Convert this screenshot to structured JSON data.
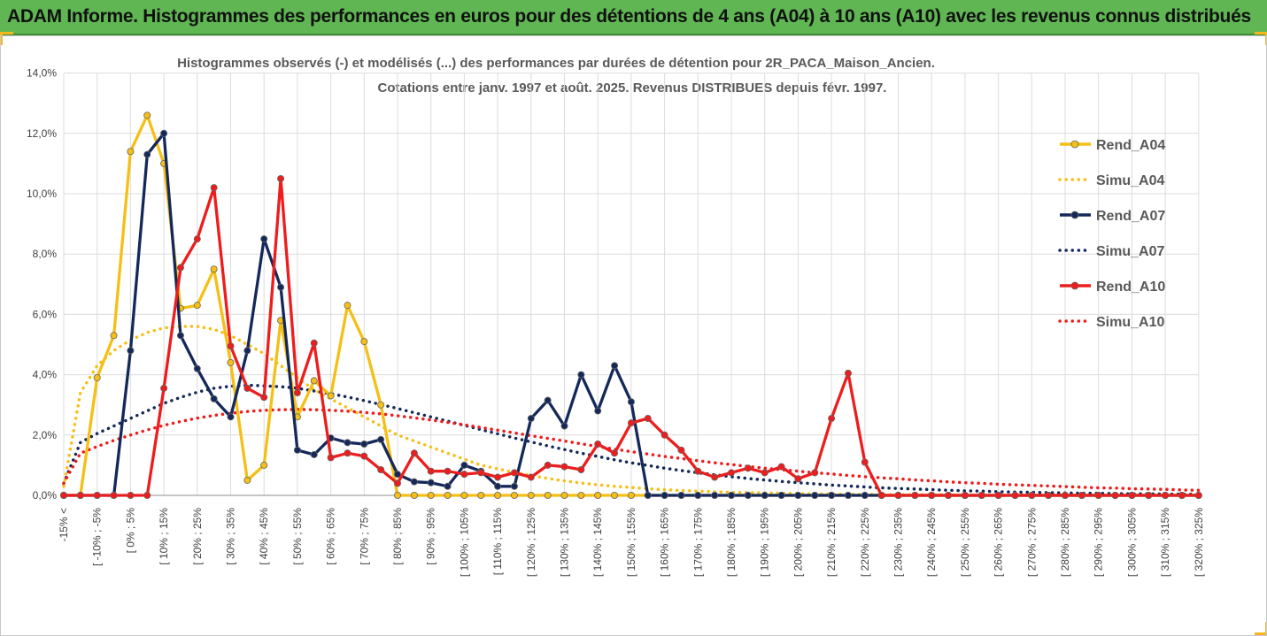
{
  "header": {
    "title": "ADAM Informe. Histogrammes des performances en euros pour des détentions de 4 ans (A04) à 10 ans (A10) avec les revenus connus distribués"
  },
  "chart_data": {
    "type": "line",
    "title": "Histogrammes observés (-) et modélisés (...) des performances par durées de détention pour 2R_PACA_Maison_Ancien.",
    "subtitle": "Cotations entre janv. 1997 et août. 2025. Revenus DISTRIBUES depuis févr. 1997.",
    "xlabel": "",
    "ylabel": "",
    "ylim": [
      0,
      14
    ],
    "yticks": [
      "0,0%",
      "2,0%",
      "4,0%",
      "6,0%",
      "8,0%",
      "10,0%",
      "12,0%",
      "14,0%"
    ],
    "grid": true,
    "legend_position": "right",
    "x_labels": [
      "-15% <",
      "[ -10% ; -5%",
      "[ 0% ; 5%",
      "[ 10% ; 15%",
      "[ 20% ; 25%",
      "[ 30% ; 35%",
      "[ 40% ; 45%",
      "[ 50% ; 55%",
      "[ 60% ; 65%",
      "[ 70% ; 75%",
      "[ 80% ; 85%",
      "[ 90% ; 95%",
      "[ 100% ; 105%",
      "[ 110% ; 115%",
      "[ 120% ; 125%",
      "[ 130% ; 135%",
      "[ 140% ; 145%",
      "[ 150% ; 155%",
      "[ 160% ; 165%",
      "[ 170% ; 175%",
      "[ 180% ; 185%",
      "[ 190% ; 195%",
      "[ 200% ; 205%",
      "[ 210% ; 215%",
      "[ 220% ; 225%",
      "[ 230% ; 235%",
      "[ 240% ; 245%",
      "[ 250% ; 255%",
      "[ 260% ; 265%",
      "[ 270% ; 275%",
      "[ 280% ; 285%",
      "[ 290% ; 295%",
      "[ 300% ; 305%",
      "[ 310% ; 315%",
      "[ 320% ; 325%"
    ],
    "series": [
      {
        "name": "Rend_A04",
        "color": "#f5bf16",
        "style": "solid",
        "values": [
          0,
          0,
          3.9,
          5.3,
          11.4,
          12.6,
          11.0,
          6.2,
          6.3,
          7.5,
          4.4,
          0.5,
          1.0,
          5.8,
          2.6,
          3.8,
          3.3,
          6.3,
          5.1,
          3.0,
          0,
          0,
          0,
          0,
          0,
          0,
          0,
          0,
          0,
          0,
          0,
          0,
          0,
          0,
          0,
          0,
          0,
          0,
          0,
          0,
          0,
          0,
          0,
          0,
          0,
          0,
          0,
          0,
          0,
          0,
          0,
          0,
          0,
          0,
          0,
          0,
          0,
          0,
          0,
          0,
          0,
          0,
          0,
          0,
          0,
          0,
          0,
          0,
          0
        ]
      },
      {
        "name": "Simu_A04",
        "color": "#f5bf16",
        "style": "dotted",
        "values": [
          0.3,
          3.4,
          4.3,
          4.8,
          5.15,
          5.4,
          5.55,
          5.6,
          5.6,
          5.5,
          5.3,
          5.0,
          4.7,
          4.3,
          3.9,
          3.5,
          3.2,
          2.9,
          2.6,
          2.3,
          2.0,
          1.8,
          1.6,
          1.4,
          1.2,
          1.0,
          0.88,
          0.76,
          0.66,
          0.56,
          0.48,
          0.41,
          0.35,
          0.3,
          0.26,
          0.22,
          0.19,
          0.16,
          0.14,
          0.12,
          0.1,
          0.09,
          0.08,
          0.07,
          0.06,
          0.05,
          0.04,
          0.04,
          0.03,
          0.03,
          0.02,
          0.02,
          0.02,
          0.02,
          0.01,
          0.01,
          0.01,
          0.01,
          0.01,
          0.01,
          0.01,
          0.01,
          0.01,
          0.01,
          0.01,
          0.01,
          0.01,
          0.01,
          0.01
        ]
      },
      {
        "name": "Rend_A07",
        "color": "#14285a",
        "style": "solid",
        "values": [
          0,
          0,
          0,
          0,
          4.8,
          11.3,
          12.0,
          5.3,
          4.2,
          3.2,
          2.6,
          4.8,
          8.5,
          6.9,
          1.5,
          1.35,
          1.9,
          1.75,
          1.7,
          1.85,
          0.7,
          0.45,
          0.42,
          0.3,
          1.0,
          0.8,
          0.3,
          0.3,
          2.55,
          3.15,
          2.3,
          4.0,
          2.8,
          4.3,
          3.1,
          0,
          0,
          0,
          0,
          0,
          0,
          0,
          0,
          0,
          0,
          0,
          0,
          0,
          0,
          0,
          0,
          0,
          0,
          0,
          0,
          0,
          0,
          0,
          0,
          0,
          0,
          0,
          0,
          0,
          0,
          0,
          0,
          0,
          0
        ]
      },
      {
        "name": "Simu_A07",
        "color": "#14285a",
        "style": "dotted",
        "values": [
          0.4,
          1.75,
          2.05,
          2.3,
          2.55,
          2.8,
          3.05,
          3.25,
          3.42,
          3.55,
          3.62,
          3.65,
          3.63,
          3.6,
          3.55,
          3.46,
          3.37,
          3.26,
          3.14,
          3.01,
          2.88,
          2.74,
          2.6,
          2.46,
          2.32,
          2.18,
          2.04,
          1.9,
          1.77,
          1.64,
          1.52,
          1.4,
          1.29,
          1.18,
          1.08,
          0.99,
          0.9,
          0.82,
          0.75,
          0.68,
          0.62,
          0.56,
          0.51,
          0.46,
          0.42,
          0.38,
          0.34,
          0.31,
          0.28,
          0.25,
          0.23,
          0.21,
          0.19,
          0.17,
          0.15,
          0.14,
          0.12,
          0.11,
          0.1,
          0.09,
          0.08,
          0.07,
          0.07,
          0.06,
          0.05,
          0.05,
          0.04,
          0.04,
          0.03
        ]
      },
      {
        "name": "Rend_A10",
        "color": "#ee1c1c",
        "style": "solid",
        "values": [
          0,
          0,
          0,
          0,
          0,
          0,
          3.55,
          7.55,
          8.5,
          10.2,
          4.95,
          3.55,
          3.25,
          10.5,
          3.4,
          5.05,
          1.25,
          1.4,
          1.3,
          0.85,
          0.4,
          1.4,
          0.8,
          0.8,
          0.7,
          0.75,
          0.6,
          0.75,
          0.6,
          1.0,
          0.95,
          0.85,
          1.7,
          1.4,
          2.4,
          2.55,
          2.0,
          1.5,
          0.8,
          0.6,
          0.75,
          0.9,
          0.75,
          0.95,
          0.55,
          0.75,
          2.55,
          4.05,
          1.1,
          0,
          0,
          0,
          0,
          0,
          0,
          0,
          0,
          0,
          0,
          0,
          0,
          0,
          0,
          0,
          0,
          0,
          0,
          0,
          0
        ]
      },
      {
        "name": "Simu_A10",
        "color": "#ee1c1c",
        "style": "dotted",
        "values": [
          0.4,
          1.4,
          1.62,
          1.82,
          2.0,
          2.17,
          2.32,
          2.45,
          2.56,
          2.65,
          2.72,
          2.78,
          2.82,
          2.84,
          2.85,
          2.84,
          2.82,
          2.79,
          2.75,
          2.7,
          2.64,
          2.57,
          2.5,
          2.42,
          2.34,
          2.25,
          2.16,
          2.07,
          1.98,
          1.89,
          1.8,
          1.71,
          1.62,
          1.53,
          1.45,
          1.37,
          1.29,
          1.22,
          1.15,
          1.08,
          1.02,
          0.96,
          0.9,
          0.85,
          0.8,
          0.75,
          0.71,
          0.66,
          0.62,
          0.58,
          0.55,
          0.51,
          0.48,
          0.45,
          0.42,
          0.4,
          0.37,
          0.35,
          0.33,
          0.31,
          0.29,
          0.27,
          0.25,
          0.24,
          0.22,
          0.21,
          0.2,
          0.18,
          0.17
        ]
      }
    ]
  }
}
